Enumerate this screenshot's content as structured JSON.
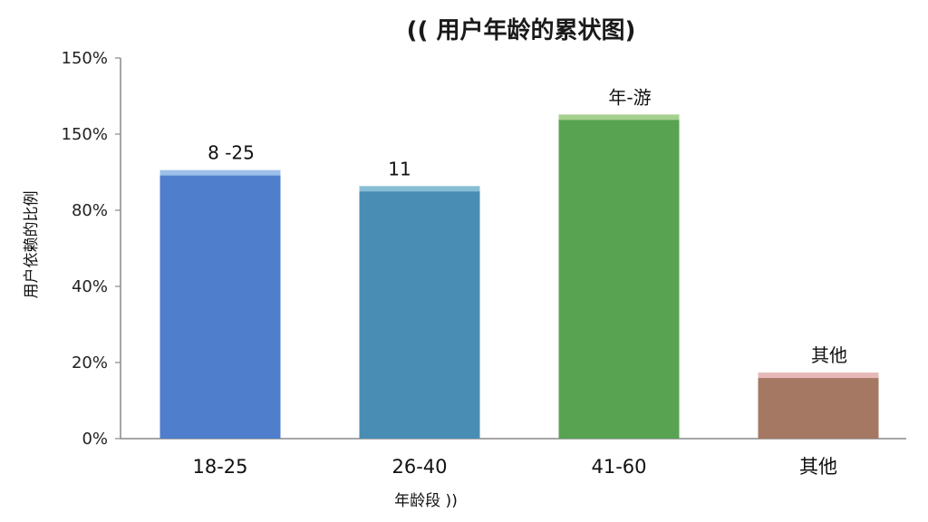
{
  "chart_data": {
    "type": "bar",
    "title": "(( 用户年龄的累状图)",
    "xlabel": "年龄段 ))",
    "ylabel": "用户依赖的比例",
    "ytick_labels": [
      "0%",
      "20%",
      "40%",
      "80%",
      "150%",
      "150%"
    ],
    "ylim_ticks": [
      0,
      5
    ],
    "grid": false,
    "categories": [
      "18-25",
      "26-40",
      "41-60",
      "其他"
    ],
    "values": [
      3.48,
      3.27,
      4.21,
      0.82
    ],
    "bar_labels": [
      "8 -25",
      "11",
      "年-游",
      "其他"
    ],
    "colors": {
      "bars": [
        "#4f7fcc",
        "#4a8db4",
        "#58a352",
        "#a47863"
      ],
      "caps": [
        "#9cc0e8",
        "#88bdd6",
        "#a6d08e",
        "#e6b8b8"
      ],
      "axis": "#888888"
    }
  }
}
